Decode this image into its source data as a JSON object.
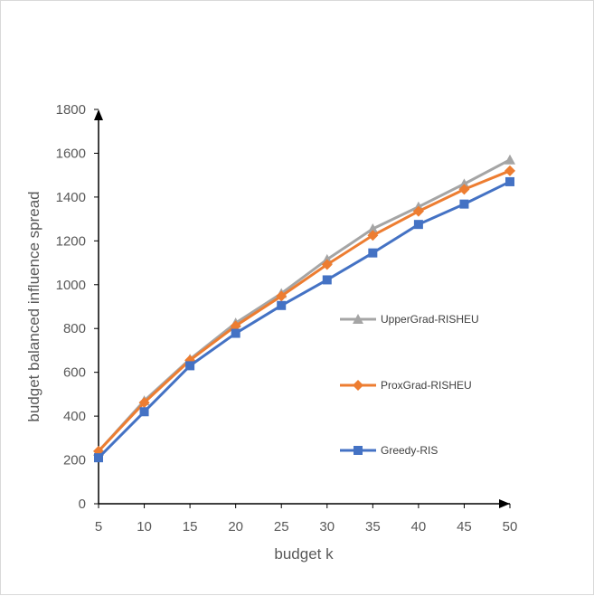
{
  "chart_data": {
    "type": "line",
    "title": "",
    "xlabel": "budget k",
    "ylabel": "budget balanced influence spread",
    "categories": [
      "5",
      "10",
      "15",
      "20",
      "25",
      "30",
      "35",
      "40",
      "45",
      "50"
    ],
    "x": [
      5,
      10,
      15,
      20,
      25,
      30,
      35,
      40,
      45,
      50
    ],
    "ylim": [
      0,
      1800
    ],
    "yticks": [
      0,
      200,
      400,
      600,
      800,
      1000,
      1200,
      1400,
      1600,
      1800
    ],
    "grid": false,
    "legend_position": "right, inside plot",
    "series": [
      {
        "name": "UpperGrad-RISHEU",
        "color": "#a5a5a5",
        "marker": "triangle",
        "values": [
          240,
          470,
          660,
          825,
          960,
          1115,
          1255,
          1355,
          1460,
          1570
        ]
      },
      {
        "name": "ProxGrad-RISHEU",
        "color": "#ed7d31",
        "marker": "diamond",
        "values": [
          240,
          462,
          655,
          812,
          948,
          1092,
          1225,
          1335,
          1435,
          1520
        ]
      },
      {
        "name": "Greedy-RIS",
        "color": "#4472c4",
        "marker": "square",
        "values": [
          210,
          420,
          630,
          778,
          905,
          1022,
          1145,
          1275,
          1368,
          1470
        ]
      }
    ]
  }
}
